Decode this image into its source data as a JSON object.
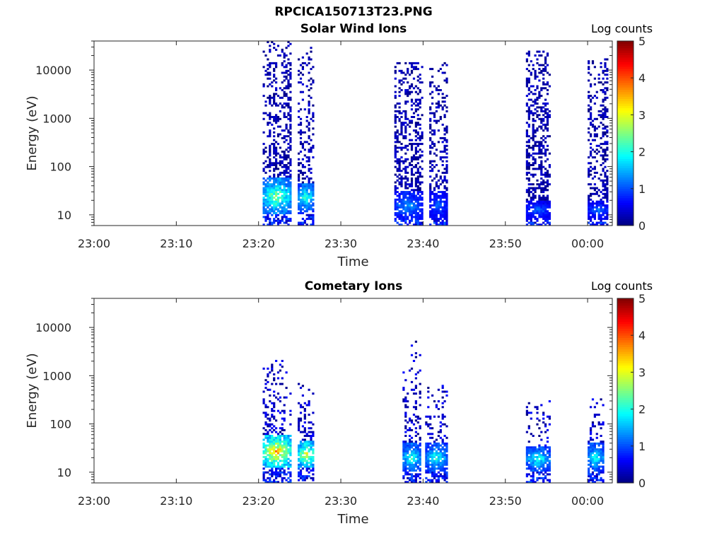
{
  "figure_title": "RPCICA150713T23.PNG",
  "chart_data": [
    {
      "type": "heatmap",
      "title": "Solar Wind Ions",
      "xlabel": "Time",
      "ylabel": "Energy (eV)",
      "y_scale": "log",
      "ylim": [
        6,
        40000
      ],
      "xlim": [
        "23:00",
        "00:03"
      ],
      "x_ticks": [
        "23:00",
        "23:10",
        "23:20",
        "23:30",
        "23:40",
        "23:50",
        "00:00"
      ],
      "y_ticks": [
        "10",
        "100",
        "1000",
        "10000"
      ],
      "colorbar": {
        "label": "Log counts",
        "range": [
          0,
          5
        ],
        "ticks": [
          "0",
          "1",
          "2",
          "3",
          "4",
          "5"
        ],
        "colormap": "jet"
      },
      "bursts": [
        {
          "start": "23:20:30",
          "end": "23:24:00",
          "emax": 40000,
          "core_emin": 10,
          "core_emax": 60,
          "core_peak": 2.8
        },
        {
          "start": "23:24:45",
          "end": "23:26:45",
          "emax": 30000,
          "core_emin": 12,
          "core_emax": 45,
          "core_peak": 2.4
        },
        {
          "start": "23:36:30",
          "end": "23:40:00",
          "emax": 15000,
          "core_emin": 8,
          "core_emax": 30,
          "core_peak": 1.6
        },
        {
          "start": "23:40:45",
          "end": "23:43:00",
          "emax": 15000,
          "core_emin": 8,
          "core_emax": 30,
          "core_peak": 1.3
        },
        {
          "start": "23:52:30",
          "end": "23:55:30",
          "emax": 25000,
          "core_emin": 8,
          "core_emax": 20,
          "core_peak": 1.3
        },
        {
          "start": "00:00:00",
          "end": "00:02:30",
          "emax": 20000,
          "core_emin": 8,
          "core_emax": 20,
          "core_peak": 1.3
        }
      ]
    },
    {
      "type": "heatmap",
      "title": "Cometary Ions",
      "xlabel": "Time",
      "ylabel": "Energy (eV)",
      "y_scale": "log",
      "ylim": [
        6,
        40000
      ],
      "xlim": [
        "23:00",
        "00:03"
      ],
      "x_ticks": [
        "23:00",
        "23:10",
        "23:20",
        "23:30",
        "23:40",
        "23:50",
        "00:00"
      ],
      "y_ticks": [
        "10",
        "100",
        "1000",
        "10000"
      ],
      "colorbar": {
        "label": "Log counts",
        "range": [
          0,
          5
        ],
        "ticks": [
          "0",
          "1",
          "2",
          "3",
          "4",
          "5"
        ],
        "colormap": "jet"
      },
      "bursts": [
        {
          "start": "23:20:30",
          "end": "23:24:00",
          "emax": 2200,
          "core_emin": 12,
          "core_emax": 60,
          "core_peak": 3.8
        },
        {
          "start": "23:24:45",
          "end": "23:26:45",
          "emax": 700,
          "core_emin": 12,
          "core_emax": 45,
          "core_peak": 3.4
        },
        {
          "start": "23:37:30",
          "end": "23:39:45",
          "emax": 6000,
          "core_emin": 10,
          "core_emax": 40,
          "core_peak": 2.3
        },
        {
          "start": "23:40:15",
          "end": "23:43:00",
          "emax": 650,
          "core_emin": 10,
          "core_emax": 40,
          "core_peak": 2.2
        },
        {
          "start": "23:52:30",
          "end": "23:55:30",
          "emax": 300,
          "core_emin": 10,
          "core_emax": 35,
          "core_peak": 2.2
        },
        {
          "start": "00:00:00",
          "end": "00:02:00",
          "emax": 350,
          "core_emin": 10,
          "core_emax": 40,
          "core_peak": 2.2
        }
      ]
    }
  ]
}
